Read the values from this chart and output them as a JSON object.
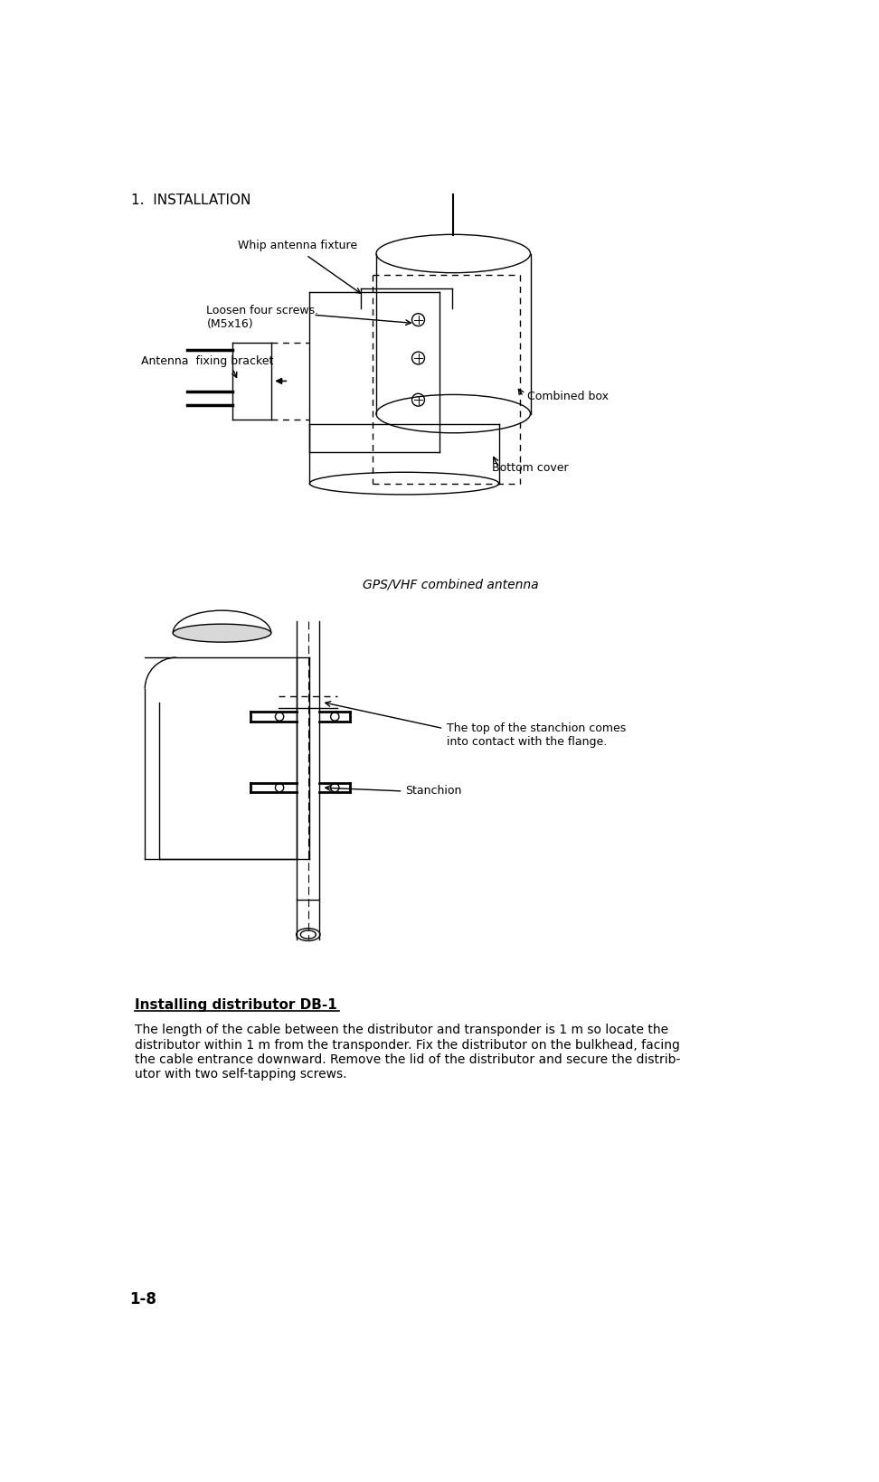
{
  "bg_color": "#ffffff",
  "header_text": "1.  INSTALLATION",
  "header_fontsize": 11,
  "caption_text": "GPS/VHF combined antenna",
  "section_title": "Installing distributor DB-1",
  "body_text": "The length of the cable between the distributor and transponder is 1 m so locate the\ndistributor within 1 m from the transponder. Fix the distributor on the bulkhead, facing\nthe cable entrance downward. Remove the lid of the distributor and secure the distrib-\nutor with two self-tapping screws.",
  "footer_text": "1-8",
  "label_whip": "Whip antenna fixture",
  "label_loosen": "Loosen four screws.\n(M5x16)",
  "label_antenna": "Antenna  fixing bracket",
  "label_combined": "Combined box",
  "label_bottom": "Bottom cover",
  "label_top_stanchion": "The top of the stanchion comes\ninto contact with the flange.",
  "label_stanchion": "Stanchion"
}
